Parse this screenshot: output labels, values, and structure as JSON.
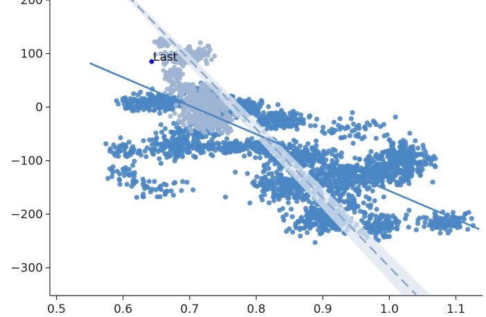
{
  "chart_data": {
    "type": "scatter",
    "title": "",
    "xlabel": "",
    "ylabel": "",
    "xlim": [
      0.49,
      1.14
    ],
    "ylim": [
      -352,
      200
    ],
    "grid": false,
    "x_ticks": [
      0.5,
      0.6,
      0.7,
      0.8,
      0.9,
      1.0,
      1.1
    ],
    "x_tick_labels": [
      "0.5",
      "0.6",
      "0.7",
      "0.8",
      "0.9",
      "1.0",
      "1.1"
    ],
    "y_ticks": [
      200,
      100,
      0,
      -100,
      -200,
      -300
    ],
    "y_tick_labels": [
      "200",
      "100",
      "0",
      "−100",
      "−200",
      "−300"
    ],
    "colors": {
      "main": "#4a86c3",
      "recent": "#9db4d2",
      "last_point": "#1010cc",
      "band": "#dde6f0"
    },
    "series": [
      {
        "role": "main",
        "clusters": [
          {
            "cx": 0.765,
            "cy": -2,
            "rx": 0.035,
            "ry": 14,
            "n": 320
          },
          {
            "cx": 0.73,
            "cy": 18,
            "rx": 0.02,
            "ry": 16,
            "n": 140
          },
          {
            "cx": 0.66,
            "cy": 12,
            "rx": 0.04,
            "ry": 12,
            "n": 120
          },
          {
            "cx": 0.63,
            "cy": 5,
            "rx": 0.035,
            "ry": 10,
            "n": 70
          },
          {
            "cx": 0.84,
            "cy": -25,
            "rx": 0.03,
            "ry": 14,
            "n": 150
          },
          {
            "cx": 0.68,
            "cy": -75,
            "rx": 0.04,
            "ry": 18,
            "n": 150
          },
          {
            "cx": 0.785,
            "cy": -75,
            "rx": 0.06,
            "ry": 12,
            "n": 200
          },
          {
            "cx": 0.71,
            "cy": -45,
            "rx": 0.04,
            "ry": 12,
            "n": 90
          },
          {
            "cx": 0.87,
            "cy": -95,
            "rx": 0.05,
            "ry": 16,
            "n": 160
          },
          {
            "cx": 0.93,
            "cy": -130,
            "rx": 0.05,
            "ry": 20,
            "n": 260
          },
          {
            "cx": 0.85,
            "cy": -150,
            "rx": 0.05,
            "ry": 30,
            "n": 220
          },
          {
            "cx": 0.9,
            "cy": -210,
            "rx": 0.04,
            "ry": 22,
            "n": 220
          },
          {
            "cx": 1.02,
            "cy": -100,
            "rx": 0.035,
            "ry": 30,
            "n": 260
          },
          {
            "cx": 0.98,
            "cy": -120,
            "rx": 0.035,
            "ry": 25,
            "n": 110
          },
          {
            "cx": 0.99,
            "cy": -220,
            "rx": 0.025,
            "ry": 20,
            "n": 110
          },
          {
            "cx": 1.08,
            "cy": -215,
            "rx": 0.03,
            "ry": 15,
            "n": 100
          },
          {
            "cx": 0.65,
            "cy": -150,
            "rx": 0.035,
            "ry": 16,
            "n": 40
          },
          {
            "cx": 0.6,
            "cy": -130,
            "rx": 0.025,
            "ry": 25,
            "n": 30
          },
          {
            "cx": 0.94,
            "cy": -40,
            "rx": 0.05,
            "ry": 18,
            "n": 50
          },
          {
            "cx": 0.94,
            "cy": -175,
            "rx": 0.04,
            "ry": 22,
            "n": 80
          },
          {
            "cx": 0.6,
            "cy": -80,
            "rx": 0.02,
            "ry": 15,
            "n": 40
          }
        ],
        "fit": {
          "x": [
            0.55,
            1.135
          ],
          "y": [
            82,
            -228
          ]
        }
      },
      {
        "role": "recent",
        "clusters": [
          {
            "cx": 0.695,
            "cy": 95,
            "rx": 0.028,
            "ry": 14,
            "n": 130
          },
          {
            "cx": 0.66,
            "cy": 120,
            "rx": 0.01,
            "ry": 8,
            "n": 25
          },
          {
            "cx": 0.675,
            "cy": 60,
            "rx": 0.012,
            "ry": 10,
            "n": 50
          },
          {
            "cx": 0.685,
            "cy": 35,
            "rx": 0.02,
            "ry": 8,
            "n": 50
          },
          {
            "cx": 0.715,
            "cy": 15,
            "rx": 0.02,
            "ry": 20,
            "n": 150
          },
          {
            "cx": 0.73,
            "cy": -25,
            "rx": 0.035,
            "ry": 16,
            "n": 200
          },
          {
            "cx": 0.74,
            "cy": 5,
            "rx": 0.02,
            "ry": 10,
            "n": 60
          }
        ],
        "fit": {
          "x": [
            0.59,
            1.04
          ],
          "y": [
            230,
            -350
          ],
          "band_halfwidth_start": 4,
          "band_halfwidth_end": 20
        }
      }
    ],
    "last_point": {
      "x": 0.643,
      "y": 85,
      "label": "Last"
    }
  }
}
